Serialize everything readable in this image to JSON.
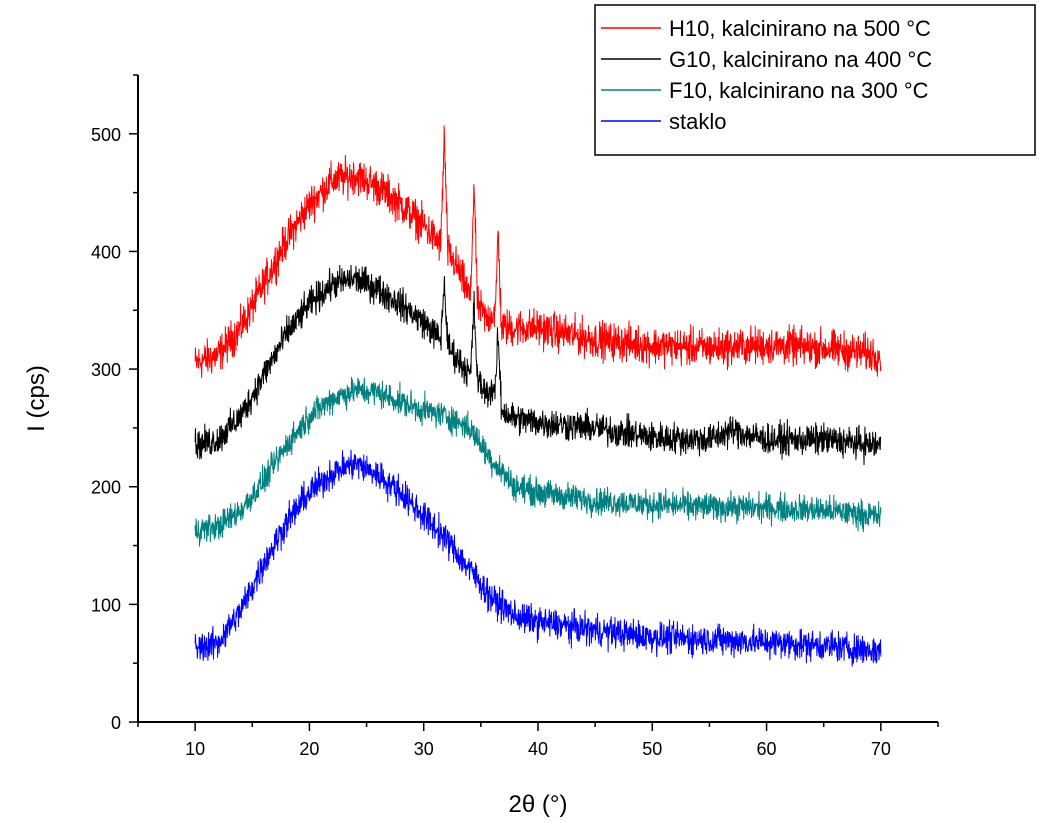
{
  "chart_data": {
    "type": "line",
    "xlabel": "2θ (°)",
    "ylabel": "I (cps)",
    "xlim": [
      5,
      75
    ],
    "ylim": [
      0,
      550
    ],
    "xticks": [
      10,
      20,
      30,
      40,
      50,
      60,
      70
    ],
    "yticks": [
      0,
      100,
      200,
      300,
      400,
      500
    ],
    "grid": false,
    "legend_position": "top-right",
    "series": [
      {
        "name": "H10, kalcinirano na 500 °C",
        "color": "#ff0000",
        "noise": 12,
        "points": [
          [
            10,
            305
          ],
          [
            12,
            312
          ],
          [
            14,
            335
          ],
          [
            16,
            372
          ],
          [
            18,
            410
          ],
          [
            20,
            440
          ],
          [
            22,
            460
          ],
          [
            24,
            465
          ],
          [
            26,
            455
          ],
          [
            28,
            440
          ],
          [
            30,
            422
          ],
          [
            31.5,
            405
          ],
          [
            31.8,
            500
          ],
          [
            32.1,
            400
          ],
          [
            33,
            385
          ],
          [
            34.1,
            360
          ],
          [
            34.4,
            460
          ],
          [
            34.7,
            355
          ],
          [
            35.5,
            342
          ],
          [
            36.3,
            350
          ],
          [
            36.5,
            420
          ],
          [
            36.8,
            335
          ],
          [
            38,
            335
          ],
          [
            40,
            335
          ],
          [
            45,
            325
          ],
          [
            50,
            320
          ],
          [
            55,
            318
          ],
          [
            60,
            320
          ],
          [
            65,
            318
          ],
          [
            70,
            312
          ]
        ]
      },
      {
        "name": "G10, kalcinirano na 400 °C",
        "color": "#000000",
        "noise": 10,
        "points": [
          [
            10,
            235
          ],
          [
            12,
            240
          ],
          [
            14,
            260
          ],
          [
            16,
            295
          ],
          [
            18,
            330
          ],
          [
            20,
            355
          ],
          [
            22,
            372
          ],
          [
            24,
            377
          ],
          [
            26,
            368
          ],
          [
            28,
            355
          ],
          [
            30,
            340
          ],
          [
            31.5,
            325
          ],
          [
            31.8,
            375
          ],
          [
            32.1,
            320
          ],
          [
            33,
            308
          ],
          [
            34.1,
            295
          ],
          [
            34.4,
            355
          ],
          [
            34.7,
            290
          ],
          [
            35.5,
            280
          ],
          [
            36.3,
            285
          ],
          [
            36.5,
            330
          ],
          [
            36.8,
            265
          ],
          [
            38,
            258
          ],
          [
            40,
            255
          ],
          [
            45,
            250
          ],
          [
            50,
            242
          ],
          [
            55,
            240
          ],
          [
            57,
            248
          ],
          [
            60,
            240
          ],
          [
            65,
            240
          ],
          [
            70,
            235
          ]
        ]
      },
      {
        "name": "F10, kalcinirano na 300 °C",
        "color": "#008080",
        "noise": 9,
        "points": [
          [
            10,
            163
          ],
          [
            12,
            166
          ],
          [
            14,
            180
          ],
          [
            16,
            205
          ],
          [
            18,
            235
          ],
          [
            20,
            260
          ],
          [
            22,
            275
          ],
          [
            24,
            282
          ],
          [
            26,
            280
          ],
          [
            28,
            272
          ],
          [
            30,
            265
          ],
          [
            32,
            260
          ],
          [
            34,
            250
          ],
          [
            36,
            222
          ],
          [
            38,
            200
          ],
          [
            40,
            195
          ],
          [
            45,
            188
          ],
          [
            50,
            185
          ],
          [
            55,
            183
          ],
          [
            60,
            182
          ],
          [
            65,
            180
          ],
          [
            70,
            175
          ]
        ]
      },
      {
        "name": "staklo",
        "color": "#0000ff",
        "noise": 10,
        "points": [
          [
            10,
            63
          ],
          [
            12,
            67
          ],
          [
            14,
            95
          ],
          [
            16,
            135
          ],
          [
            18,
            170
          ],
          [
            20,
            195
          ],
          [
            22,
            212
          ],
          [
            24,
            220
          ],
          [
            26,
            210
          ],
          [
            28,
            195
          ],
          [
            30,
            175
          ],
          [
            32,
            155
          ],
          [
            34,
            130
          ],
          [
            36,
            105
          ],
          [
            38,
            90
          ],
          [
            40,
            85
          ],
          [
            45,
            78
          ],
          [
            50,
            72
          ],
          [
            55,
            70
          ],
          [
            60,
            68
          ],
          [
            65,
            65
          ],
          [
            70,
            60
          ]
        ]
      }
    ]
  }
}
